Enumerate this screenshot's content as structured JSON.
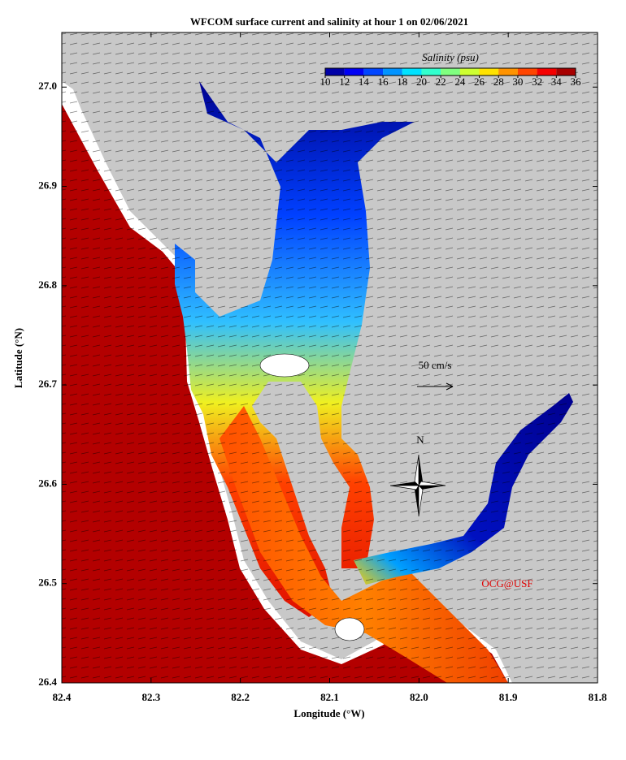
{
  "chart_data": {
    "type": "map",
    "title": "WFCOM surface current and salinity at hour 1 on 02/06/2021",
    "xlabel": "Longitude (°W)",
    "ylabel": "Latitude (°N)",
    "xlim": [
      82.4,
      81.8
    ],
    "xticks": [
      82.4,
      82.3,
      82.2,
      82.1,
      {
        "value": 82,
        "label": "82.0"
      },
      81.9,
      81.8
    ],
    "ylim": [
      26.4,
      27.055
    ],
    "yticks": [
      26.4,
      26.5,
      26.6,
      26.7,
      26.8,
      26.9,
      {
        "value": 27,
        "label": "27.0"
      }
    ],
    "colorbar": {
      "title": "Salinity (psu)",
      "colormap": "jet",
      "clim": [
        10,
        36
      ],
      "ticks": [
        10,
        12,
        14,
        16,
        18,
        20,
        22,
        24,
        26,
        28,
        30,
        32,
        34,
        36
      ]
    },
    "scale_label": "50 cm/s",
    "compass_label": "N",
    "watermark": "OCG@USF"
  }
}
